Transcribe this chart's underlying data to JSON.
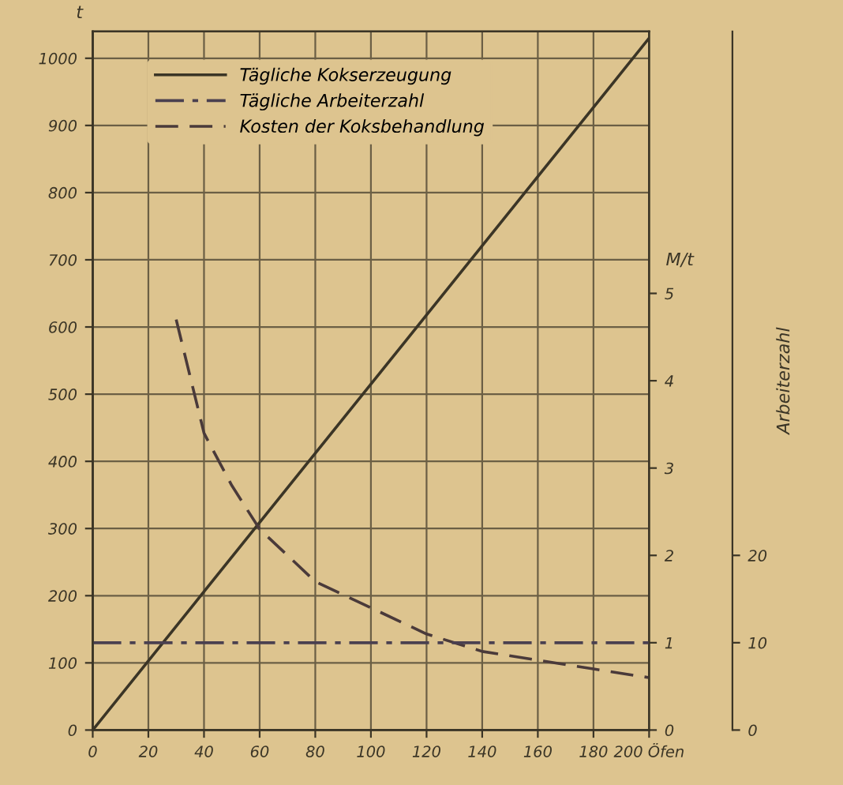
{
  "chart_data": {
    "type": "line",
    "xlim": [
      0,
      200
    ],
    "xticks": [
      0,
      20,
      40,
      60,
      80,
      100,
      120,
      140,
      160,
      180,
      {
        "value": 200,
        "label": "200 Öfen"
      }
    ],
    "ylabel": "t",
    "ylim": [
      0,
      1040
    ],
    "yticks": [
      0,
      100,
      200,
      300,
      400,
      500,
      600,
      700,
      800,
      900,
      1000
    ],
    "y2label": "M/t",
    "y2lim": [
      0,
      8
    ],
    "y2ticks": [
      0,
      1,
      2,
      3,
      4,
      5
    ],
    "y3label": "Arbeiterzahl",
    "y3lim": [
      0,
      80
    ],
    "y3ticks": [
      0,
      10,
      20
    ],
    "grid": true,
    "legend": "top left",
    "marker": "none",
    "series": [
      {
        "name": "Tägliche Kokserzeugung",
        "color": "#3b3526",
        "line_style": "solid",
        "x": [
          0,
          200
        ],
        "values": [
          0,
          1030
        ]
      },
      {
        "name": "Tägliche Arbeiterzahl",
        "color": "#4a4050",
        "line_style": "dashdot",
        "axis": "y3",
        "x": [
          0,
          200
        ],
        "values": [
          10,
          10
        ]
      },
      {
        "name": "Kosten der Koksbehandlung",
        "color": "#4a3a3a",
        "line_style": "dashed",
        "axis": "y2",
        "x": [
          30,
          40,
          50,
          60,
          80,
          100,
          120,
          140,
          160,
          180,
          200
        ],
        "values": [
          4.7,
          3.4,
          2.8,
          2.3,
          1.7,
          1.4,
          1.1,
          0.9,
          0.8,
          0.7,
          0.6
        ]
      }
    ]
  }
}
